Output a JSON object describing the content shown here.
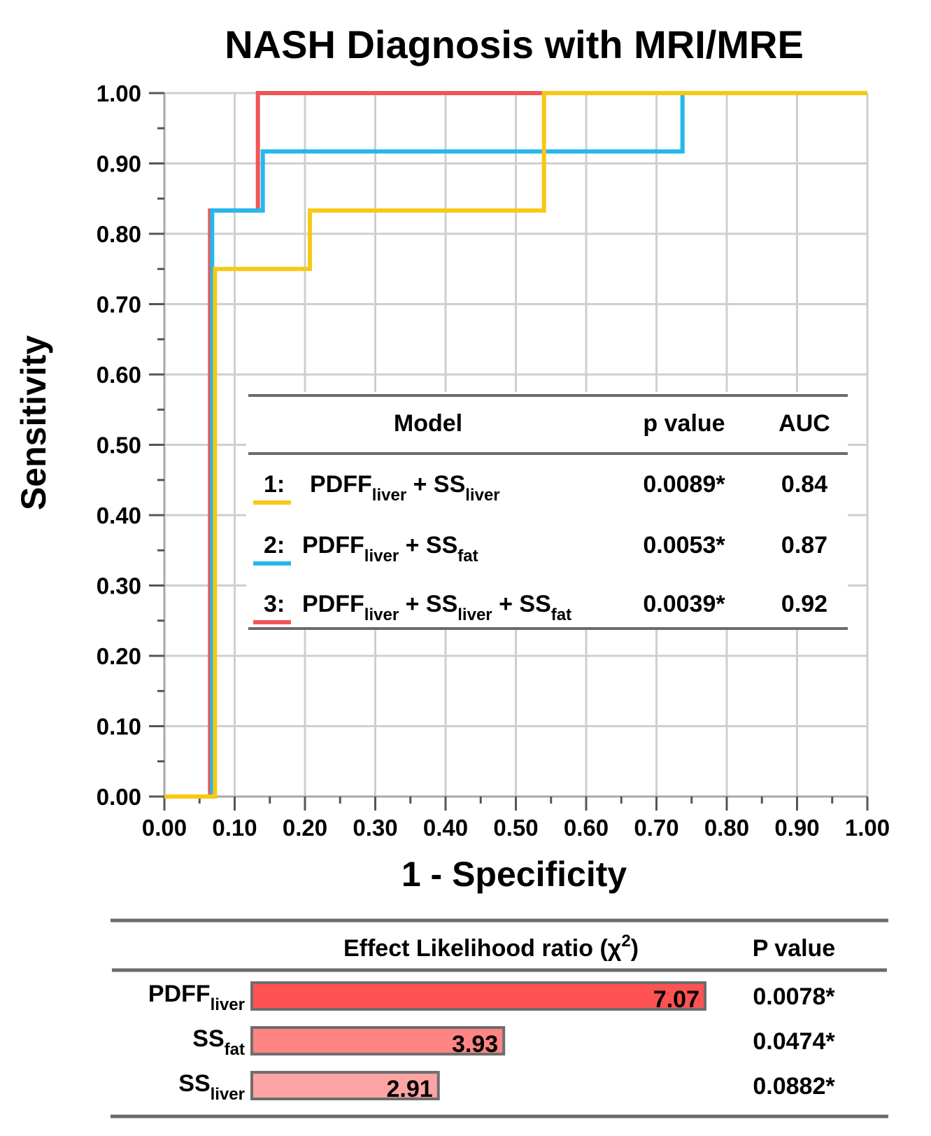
{
  "chart_data": {
    "type": "line",
    "step": true,
    "title": "NASH Diagnosis with MRI/MRE",
    "xlabel": "1 - Specificity",
    "ylabel": "Sensitivity",
    "xlim": [
      0,
      1
    ],
    "ylim": [
      0,
      1
    ],
    "grid": true,
    "x_ticks": [
      "0.00",
      "0.10",
      "0.20",
      "0.30",
      "0.40",
      "0.50",
      "0.60",
      "0.70",
      "0.80",
      "0.90",
      "1.00"
    ],
    "y_ticks": [
      "0.00",
      "0.10",
      "0.20",
      "0.30",
      "0.40",
      "0.50",
      "0.60",
      "0.70",
      "0.80",
      "0.90",
      "1.00"
    ],
    "series": [
      {
        "name": "3",
        "color": "#f05656",
        "points": [
          [
            0.0,
            0.0
          ],
          [
            0.065,
            0.0
          ],
          [
            0.065,
            0.833
          ],
          [
            0.133,
            0.833
          ],
          [
            0.133,
            1.0
          ],
          [
            1.0,
            1.0
          ]
        ]
      },
      {
        "name": "2",
        "color": "#22b8ee",
        "points": [
          [
            0.0,
            0.0
          ],
          [
            0.068,
            0.0
          ],
          [
            0.068,
            0.833
          ],
          [
            0.14,
            0.833
          ],
          [
            0.14,
            0.917
          ],
          [
            0.737,
            0.917
          ],
          [
            0.737,
            1.0
          ],
          [
            1.0,
            1.0
          ]
        ]
      },
      {
        "name": "1",
        "color": "#f8c812",
        "points": [
          [
            0.0,
            0.0
          ],
          [
            0.072,
            0.0
          ],
          [
            0.072,
            0.75
          ],
          [
            0.207,
            0.75
          ],
          [
            0.207,
            0.833
          ],
          [
            0.54,
            0.833
          ],
          [
            0.54,
            1.0
          ],
          [
            1.0,
            1.0
          ]
        ]
      }
    ],
    "model_table": {
      "headers": [
        "Model",
        "p value",
        "AUC"
      ],
      "rows": [
        {
          "num": "1:",
          "color": "#f8c812",
          "terms": [
            [
              "PDFF",
              "liver"
            ],
            [
              "SS",
              "liver"
            ]
          ],
          "p_value": "0.0089*",
          "auc": "0.84"
        },
        {
          "num": "2:",
          "color": "#22b8ee",
          "terms": [
            [
              "PDFF",
              "liver"
            ],
            [
              "SS",
              "fat"
            ]
          ],
          "p_value": "0.0053*",
          "auc": "0.87"
        },
        {
          "num": "3:",
          "color": "#f05656",
          "terms": [
            [
              "PDFF",
              "liver"
            ],
            [
              "SS",
              "liver"
            ],
            [
              "SS",
              "fat"
            ]
          ],
          "p_value": "0.0039*",
          "auc": "0.92"
        }
      ]
    },
    "effect_table": {
      "header_effect": "Effect Likelihood ratio (χ",
      "header_sup": "2",
      "header_close": ")",
      "header_p": "P value",
      "max": 7.07,
      "rows": [
        {
          "name": "PDFF",
          "sub": "liver",
          "value": 7.07,
          "label": "7.07",
          "p_value": "0.0078*",
          "color": "#ff5252"
        },
        {
          "name": "SS",
          "sub": "fat",
          "value": 3.93,
          "label": "3.93",
          "p_value": "0.0474*",
          "color": "#ff8484"
        },
        {
          "name": "SS",
          "sub": "liver",
          "value": 2.91,
          "label": "2.91",
          "p_value": "0.0882*",
          "color": "#ffa4a4"
        }
      ]
    }
  }
}
